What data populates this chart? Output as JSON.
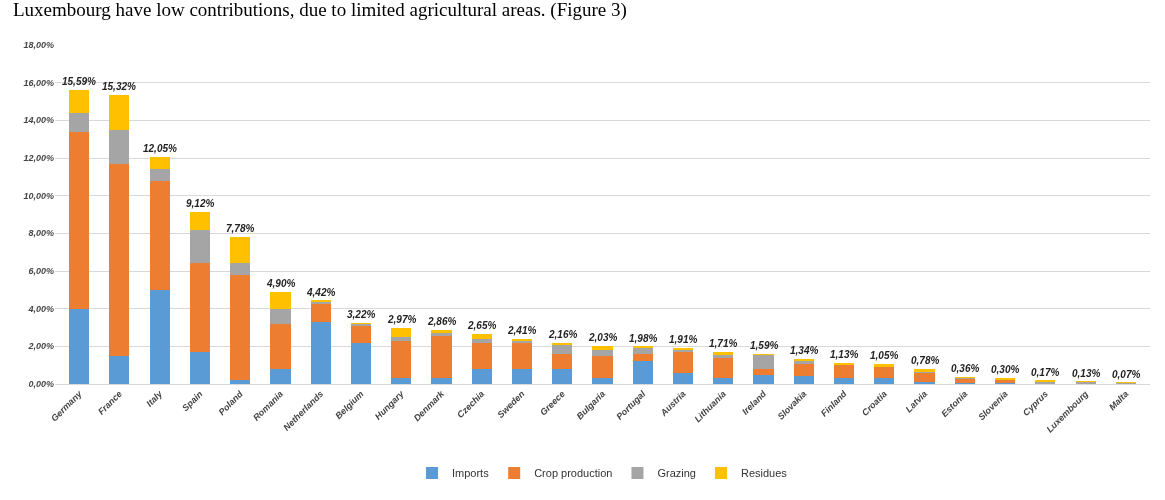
{
  "chart_data": {
    "type": "bar",
    "stacked": true,
    "annotations": [
      "Luxembourg have low contributions, due to limited agricultural areas. (Figure 3)"
    ],
    "categories": [
      "Germany",
      "France",
      "Italy",
      "Spain",
      "Poland",
      "Romania",
      "Netherlands",
      "Belgium",
      "Hungary",
      "Denmark",
      "Czechia",
      "Sweden",
      "Greece",
      "Bulgaria",
      "Portugal",
      "Austria",
      "Lithuania",
      "Ireland",
      "Slovakia",
      "Finland",
      "Croatia",
      "Latvia",
      "Estonia",
      "Slovenia",
      "Cyprus",
      "Luxembourg",
      "Malta"
    ],
    "series": [
      {
        "name": "Imports",
        "color": "#5b9bd5",
        "values": [
          4.0,
          1.5,
          5.0,
          1.7,
          0.2,
          0.8,
          3.3,
          2.2,
          0.3,
          0.3,
          0.8,
          0.8,
          0.8,
          0.3,
          1.2,
          0.6,
          0.3,
          0.5,
          0.4,
          0.3,
          0.3,
          0.1,
          0.03,
          0.03,
          null,
          0.01,
          0.01
        ]
      },
      {
        "name": "Crop production",
        "color": "#ed7d31",
        "values": [
          9.4,
          10.2,
          5.8,
          4.7,
          5.6,
          2.4,
          1.0,
          0.9,
          2.0,
          2.3,
          1.4,
          1.4,
          0.8,
          1.2,
          0.4,
          1.1,
          1.1,
          0.3,
          0.7,
          0.75,
          0.65,
          0.5,
          0.28,
          0.2,
          0.05,
          0.04,
          0.02
        ]
      },
      {
        "name": "Grazing",
        "color": "#a5a5a5",
        "values": [
          1.0,
          1.8,
          0.6,
          1.8,
          0.6,
          0.8,
          0.1,
          0.1,
          0.2,
          0.1,
          0.2,
          0.1,
          0.5,
          0.3,
          0.35,
          0.1,
          0.15,
          0.75,
          0.1,
          null,
          null,
          0.05,
          0.03,
          0.03,
          0.1,
          0.06,
          0.03
        ]
      },
      {
        "name": "Residues",
        "color": "#ffc000",
        "values": [
          1.19,
          1.82,
          0.65,
          0.92,
          1.38,
          0.9,
          0.02,
          0.02,
          0.47,
          0.16,
          0.25,
          0.11,
          0.06,
          0.23,
          0.03,
          0.11,
          0.16,
          0.04,
          0.14,
          0.08,
          0.1,
          0.13,
          0.02,
          0.04,
          0.02,
          0.02,
          0.01
        ]
      }
    ],
    "totals": [
      "15,59%",
      "15,32%",
      "12,05%",
      "9,12%",
      "7,78%",
      "4,90%",
      "4,42%",
      "3,22%",
      "2,97%",
      "2,86%",
      "2,65%",
      "2,41%",
      "2,16%",
      "2,03%",
      "1,98%",
      "1,91%",
      "1,71%",
      "1,59%",
      "1,34%",
      "1,13%",
      "1,05%",
      "0,78%",
      "0,36%",
      "0,30%",
      "0,17%",
      "0,13%",
      "0,07%"
    ],
    "ylim": [
      0,
      18
    ],
    "yticks": [
      {
        "value": 0,
        "label": "0,00%"
      },
      {
        "value": 2,
        "label": "2,00%"
      },
      {
        "value": 4,
        "label": "4,00%"
      },
      {
        "value": 6,
        "label": "6,00%"
      },
      {
        "value": 8,
        "label": "8,00%"
      },
      {
        "value": 10,
        "label": "10,00%"
      },
      {
        "value": 12,
        "label": "12,00%"
      },
      {
        "value": 14,
        "label": "14,00%"
      },
      {
        "value": 16,
        "label": "16,00%"
      },
      {
        "value": 18,
        "label": "18,00%"
      }
    ],
    "grid": "y",
    "legend": "bottom"
  }
}
